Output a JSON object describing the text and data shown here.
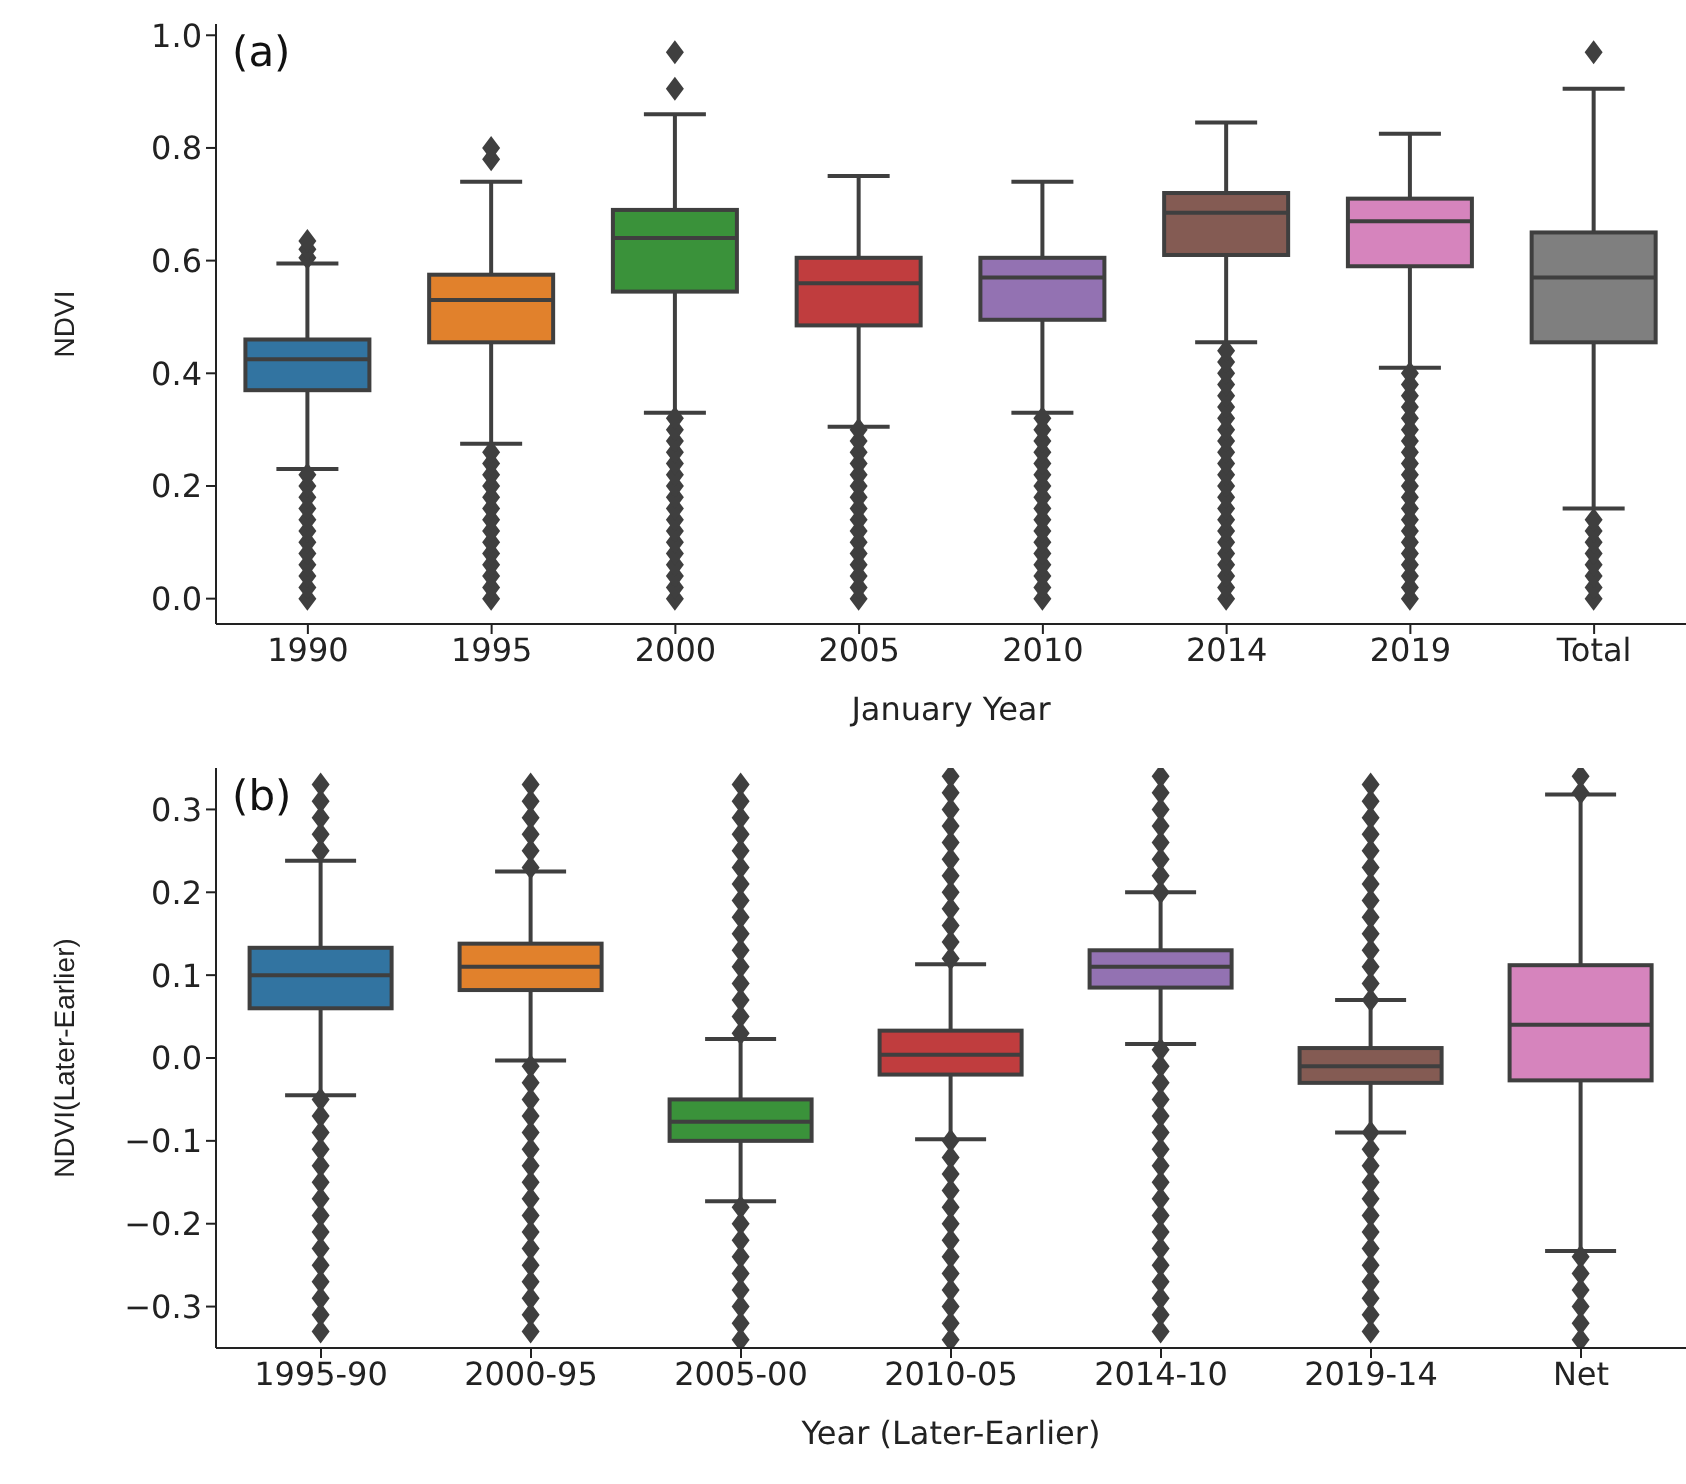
{
  "chart_data": [
    {
      "type": "box",
      "xlabel": "January Year",
      "ylabel": "NDVI",
      "annotations": [
        "(a)"
      ],
      "marker": "diamond",
      "grid": false,
      "legend": false,
      "categories": [
        "1990",
        "1995",
        "2000",
        "2005",
        "2010",
        "2014",
        "2019",
        "Total"
      ],
      "colors": [
        "#3274a1",
        "#e1812c",
        "#3a923a",
        "#c03d3e",
        "#9372b2",
        "#845b53",
        "#d684bd",
        "#7f7f7f"
      ],
      "ylim": [
        -0.045,
        1.02
      ],
      "yticks": [
        {
          "value": 0,
          "label": "0.0"
        },
        {
          "value": 0.2,
          "label": "0.2"
        },
        {
          "value": 0.4,
          "label": "0.4"
        },
        {
          "value": 0.6,
          "label": "0.6"
        },
        {
          "value": 0.8,
          "label": "0.8"
        },
        {
          "value": 1,
          "label": "1.0"
        }
      ],
      "boxes": [
        {
          "low": 0.23,
          "q1": 0.37,
          "median": 0.425,
          "q3": 0.46,
          "high": 0.595,
          "outliers": [
            0,
            0.02,
            0.04,
            0.06,
            0.08,
            0.1,
            0.12,
            0.14,
            0.16,
            0.18,
            0.2,
            0.22,
            0.605,
            0.62,
            0.635
          ]
        },
        {
          "low": 0.275,
          "q1": 0.455,
          "median": 0.53,
          "q3": 0.575,
          "high": 0.74,
          "outliers": [
            0,
            0.02,
            0.04,
            0.06,
            0.08,
            0.1,
            0.12,
            0.14,
            0.16,
            0.18,
            0.2,
            0.22,
            0.24,
            0.26,
            0.78,
            0.8
          ]
        },
        {
          "low": 0.33,
          "q1": 0.545,
          "median": 0.64,
          "q3": 0.69,
          "high": 0.86,
          "outliers": [
            0,
            0.02,
            0.04,
            0.06,
            0.08,
            0.1,
            0.12,
            0.14,
            0.16,
            0.18,
            0.2,
            0.22,
            0.24,
            0.26,
            0.28,
            0.3,
            0.32,
            0.905,
            0.97
          ]
        },
        {
          "low": 0.305,
          "q1": 0.485,
          "median": 0.56,
          "q3": 0.605,
          "high": 0.75,
          "outliers": [
            0,
            0.02,
            0.04,
            0.06,
            0.08,
            0.1,
            0.12,
            0.14,
            0.16,
            0.18,
            0.2,
            0.22,
            0.24,
            0.26,
            0.28,
            0.3
          ]
        },
        {
          "low": 0.33,
          "q1": 0.495,
          "median": 0.57,
          "q3": 0.605,
          "high": 0.74,
          "outliers": [
            0,
            0.02,
            0.04,
            0.06,
            0.08,
            0.1,
            0.12,
            0.14,
            0.16,
            0.18,
            0.2,
            0.22,
            0.24,
            0.26,
            0.28,
            0.3,
            0.32
          ]
        },
        {
          "low": 0.455,
          "q1": 0.61,
          "median": 0.685,
          "q3": 0.72,
          "high": 0.845,
          "outliers": [
            0,
            0.02,
            0.04,
            0.06,
            0.08,
            0.1,
            0.12,
            0.14,
            0.16,
            0.18,
            0.2,
            0.22,
            0.24,
            0.26,
            0.28,
            0.3,
            0.32,
            0.34,
            0.36,
            0.38,
            0.4,
            0.42,
            0.44
          ]
        },
        {
          "low": 0.41,
          "q1": 0.59,
          "median": 0.67,
          "q3": 0.71,
          "high": 0.825,
          "outliers": [
            0,
            0.02,
            0.04,
            0.06,
            0.08,
            0.1,
            0.12,
            0.14,
            0.16,
            0.18,
            0.2,
            0.22,
            0.24,
            0.26,
            0.28,
            0.3,
            0.32,
            0.34,
            0.36,
            0.38,
            0.4
          ]
        },
        {
          "low": 0.16,
          "q1": 0.455,
          "median": 0.57,
          "q3": 0.65,
          "high": 0.905,
          "outliers": [
            0,
            0.02,
            0.04,
            0.06,
            0.08,
            0.1,
            0.12,
            0.14,
            0.97
          ]
        }
      ]
    },
    {
      "type": "box",
      "xlabel": "Year (Later-Earlier)",
      "ylabel": "NDVI(Later-Earlier)",
      "annotations": [
        "(b)"
      ],
      "marker": "diamond",
      "grid": false,
      "legend": false,
      "categories": [
        "1995-90",
        "2000-95",
        "2005-00",
        "2010-05",
        "2014-10",
        "2019-14",
        "Net"
      ],
      "colors": [
        "#3274a1",
        "#e1812c",
        "#3a923a",
        "#c03d3e",
        "#9372b2",
        "#845b53",
        "#d684bd"
      ],
      "ylim": [
        -0.35,
        0.35
      ],
      "yticks": [
        {
          "value": -0.3,
          "label": "−0.3"
        },
        {
          "value": -0.2,
          "label": "−0.2"
        },
        {
          "value": -0.1,
          "label": "−0.1"
        },
        {
          "value": 0,
          "label": "0.0"
        },
        {
          "value": 0.1,
          "label": "0.1"
        },
        {
          "value": 0.2,
          "label": "0.2"
        },
        {
          "value": 0.3,
          "label": "0.3"
        }
      ],
      "boxes": [
        {
          "low": -0.045,
          "q1": 0.06,
          "median": 0.1,
          "q3": 0.133,
          "high": 0.238,
          "outliers": [
            0.25,
            0.27,
            0.29,
            0.31,
            0.33,
            -0.05,
            -0.07,
            -0.09,
            -0.11,
            -0.13,
            -0.15,
            -0.17,
            -0.19,
            -0.21,
            -0.23,
            -0.25,
            -0.27,
            -0.29,
            -0.31,
            -0.33
          ]
        },
        {
          "low": -0.003,
          "q1": 0.082,
          "median": 0.11,
          "q3": 0.138,
          "high": 0.225,
          "outliers": [
            0.23,
            0.25,
            0.27,
            0.29,
            0.31,
            0.33,
            -0.01,
            -0.03,
            -0.05,
            -0.07,
            -0.09,
            -0.11,
            -0.13,
            -0.15,
            -0.17,
            -0.19,
            -0.21,
            -0.23,
            -0.25,
            -0.27,
            -0.29,
            -0.31,
            -0.33
          ]
        },
        {
          "low": -0.173,
          "q1": -0.1,
          "median": -0.077,
          "q3": -0.05,
          "high": 0.023,
          "outliers": [
            0.03,
            0.05,
            0.07,
            0.09,
            0.11,
            0.13,
            0.15,
            0.17,
            0.19,
            0.21,
            0.23,
            0.25,
            0.27,
            0.29,
            0.31,
            0.33,
            -0.18,
            -0.2,
            -0.22,
            -0.24,
            -0.26,
            -0.28,
            -0.3,
            -0.32,
            -0.34
          ]
        },
        {
          "low": -0.098,
          "q1": -0.02,
          "median": 0.004,
          "q3": 0.033,
          "high": 0.113,
          "outliers": [
            0.12,
            0.14,
            0.16,
            0.18,
            0.2,
            0.22,
            0.24,
            0.26,
            0.28,
            0.3,
            0.32,
            0.34,
            -0.1,
            -0.12,
            -0.14,
            -0.16,
            -0.18,
            -0.2,
            -0.22,
            -0.24,
            -0.26,
            -0.28,
            -0.3,
            -0.32,
            -0.34
          ]
        },
        {
          "low": 0.017,
          "q1": 0.085,
          "median": 0.11,
          "q3": 0.13,
          "high": 0.2,
          "outliers": [
            0.2,
            0.22,
            0.24,
            0.26,
            0.28,
            0.3,
            0.32,
            0.34,
            0.01,
            -0.01,
            -0.03,
            -0.05,
            -0.07,
            -0.09,
            -0.11,
            -0.13,
            -0.15,
            -0.17,
            -0.19,
            -0.21,
            -0.23,
            -0.25,
            -0.27,
            -0.29,
            -0.31,
            -0.33
          ]
        },
        {
          "low": -0.09,
          "q1": -0.03,
          "median": -0.01,
          "q3": 0.012,
          "high": 0.07,
          "outliers": [
            0.07,
            0.09,
            0.11,
            0.13,
            0.15,
            0.17,
            0.19,
            0.21,
            0.23,
            0.25,
            0.27,
            0.29,
            0.31,
            0.33,
            -0.09,
            -0.11,
            -0.13,
            -0.15,
            -0.17,
            -0.19,
            -0.21,
            -0.23,
            -0.25,
            -0.27,
            -0.29,
            -0.31,
            -0.33
          ]
        },
        {
          "low": -0.233,
          "q1": -0.027,
          "median": 0.04,
          "q3": 0.112,
          "high": 0.318,
          "outliers": [
            0.32,
            0.34,
            -0.24,
            -0.26,
            -0.28,
            -0.3,
            -0.32,
            -0.34
          ]
        }
      ]
    }
  ]
}
